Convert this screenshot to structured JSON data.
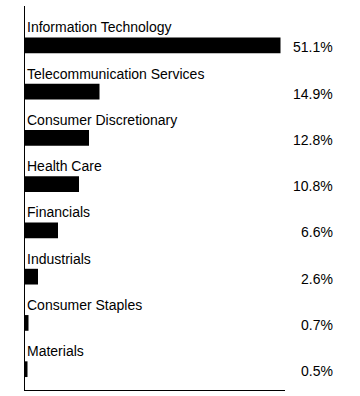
{
  "chart_data": {
    "type": "bar",
    "orientation": "horizontal",
    "categories": [
      "Information Technology",
      "Telecommunication Services",
      "Consumer Discretionary",
      "Health Care",
      "Financials",
      "Industrials",
      "Consumer Staples",
      "Materials"
    ],
    "values": [
      51.1,
      14.9,
      12.8,
      10.8,
      6.6,
      2.6,
      0.7,
      0.5
    ],
    "value_labels": [
      "51.1%",
      "14.9%",
      "12.8%",
      "10.8%",
      "6.6%",
      "2.6%",
      "0.7%",
      "0.5%"
    ],
    "color": "#000000",
    "xlim": [
      0,
      52
    ],
    "data_labels": true,
    "tick_labels": false,
    "grid": false
  }
}
